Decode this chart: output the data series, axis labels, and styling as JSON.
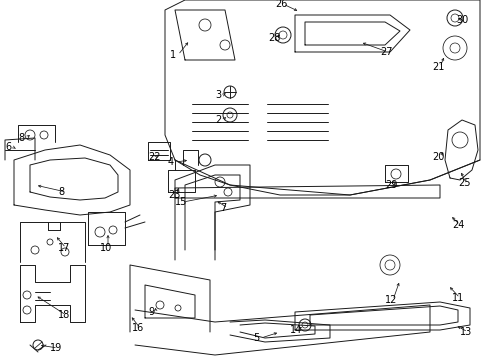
{
  "background_color": "#ffffff",
  "fig_width": 4.89,
  "fig_height": 3.6,
  "dpi": 100,
  "lc": "#1a1a1a",
  "lw": 0.7,
  "fs": 7.0
}
